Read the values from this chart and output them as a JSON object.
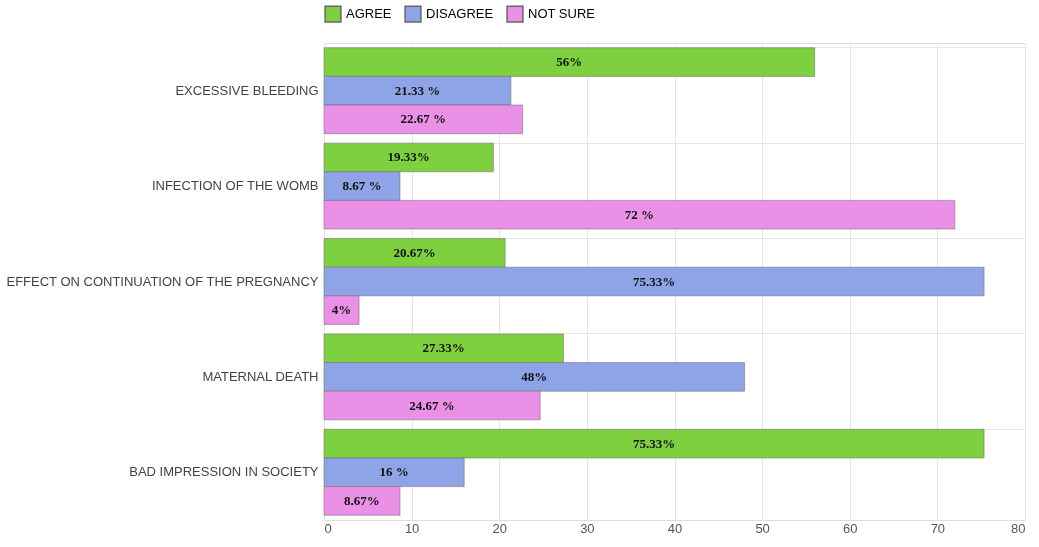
{
  "chart_data": {
    "type": "bar",
    "orientation": "horizontal",
    "categories": [
      "EXCESSIVE BLEEDING",
      "INFECTION OF THE WOMB",
      "EFFECT ON CONTINUATION OF THE PREGNANCY",
      "MATERNAL DEATH",
      "BAD IMPRESSION IN SOCIETY"
    ],
    "series": [
      {
        "name": "AGREE",
        "color": "#7ed03f",
        "values": [
          56,
          19.33,
          20.67,
          27.33,
          75.33
        ],
        "value_labels": [
          "56%",
          "19.33%",
          "20.67%",
          "27.33%",
          "75.33%"
        ]
      },
      {
        "name": "DISAGREE",
        "color": "#8ea4e6",
        "values": [
          21.33,
          8.67,
          75.33,
          48,
          16
        ],
        "value_labels": [
          "21.33 %",
          "8.67 %",
          "75.33%",
          "48%",
          "16 %"
        ]
      },
      {
        "name": "NOT SURE",
        "color": "#ea90e6",
        "values": [
          22.67,
          72,
          4,
          24.67,
          8.67
        ],
        "value_labels": [
          "22.67 %",
          "72 %",
          "4%",
          "24.67 %",
          "8.67%"
        ]
      }
    ],
    "xlim": [
      0,
      80
    ],
    "xticks": [
      0,
      10,
      20,
      30,
      40,
      50,
      60,
      70,
      80
    ],
    "grid": true,
    "legend": "top"
  }
}
